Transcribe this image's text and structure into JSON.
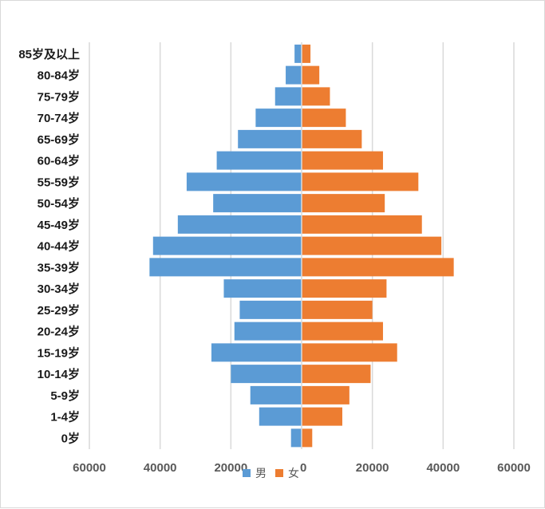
{
  "chart_data": {
    "type": "bar",
    "orientation": "horizontal",
    "subtype": "population-pyramid",
    "categories": [
      "0岁",
      "1-4岁",
      "5-9岁",
      "10-14岁",
      "15-19岁",
      "20-24岁",
      "25-29岁",
      "30-34岁",
      "35-39岁",
      "40-44岁",
      "45-49岁",
      "50-54岁",
      "55-59岁",
      "60-64岁",
      "65-69岁",
      "70-74岁",
      "75-79岁",
      "80-84岁",
      "85岁及以上"
    ],
    "series": [
      {
        "name": "男",
        "color": "#5b9bd5",
        "values": [
          3000,
          12000,
          14500,
          20000,
          25500,
          19000,
          17500,
          22000,
          43000,
          42000,
          35000,
          25000,
          32500,
          24000,
          18000,
          13000,
          7500,
          4500,
          2000
        ]
      },
      {
        "name": "女",
        "color": "#ed7d31",
        "values": [
          3000,
          11500,
          13500,
          19500,
          27000,
          23000,
          20000,
          24000,
          43000,
          39500,
          34000,
          23500,
          33000,
          23000,
          17000,
          12500,
          8000,
          5000,
          2500
        ]
      }
    ],
    "xlim": [
      -60000,
      60000
    ],
    "xticks": [
      -60000,
      -40000,
      -20000,
      0,
      20000,
      40000,
      60000
    ],
    "xtick_labels": [
      "60000",
      "40000",
      "20000",
      "0",
      "20000",
      "40000",
      "60000"
    ],
    "grid": true,
    "legend_position": "bottom"
  }
}
